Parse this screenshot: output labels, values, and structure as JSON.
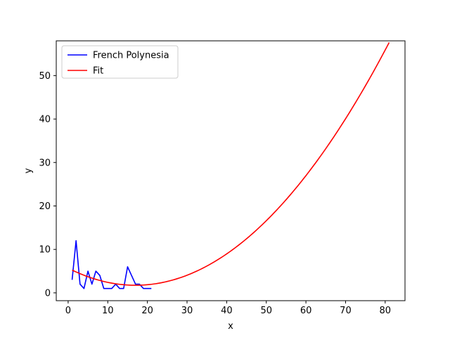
{
  "chart_data": {
    "type": "line",
    "xlabel": "x",
    "ylabel": "y",
    "xlim": [
      -3,
      85
    ],
    "ylim": [
      -1.8,
      58.0
    ],
    "xticks": [
      0,
      10,
      20,
      30,
      40,
      50,
      60,
      70,
      80
    ],
    "yticks": [
      0,
      10,
      20,
      30,
      40,
      50
    ],
    "legend": {
      "placement": "top-left"
    },
    "grid": false,
    "series": [
      {
        "name": "French Polynesia",
        "color": "#0000ff",
        "x": [
          1,
          2,
          3,
          4,
          5,
          6,
          7,
          8,
          9,
          10,
          11,
          12,
          13,
          14,
          15,
          16,
          17,
          18,
          19,
          20,
          21
        ],
        "y": [
          3,
          12,
          2,
          1,
          5,
          2,
          5,
          4,
          1,
          1,
          1,
          2,
          1,
          1,
          6,
          4,
          2,
          2,
          1,
          1,
          1
        ]
      },
      {
        "name": "Fit",
        "color": "#ff0000",
        "fit": {
          "form": "quadratic",
          "coefficients": [
            0.01364,
            -0.4637,
            5.69
          ]
        },
        "x_range": [
          1,
          81
        ]
      }
    ]
  }
}
